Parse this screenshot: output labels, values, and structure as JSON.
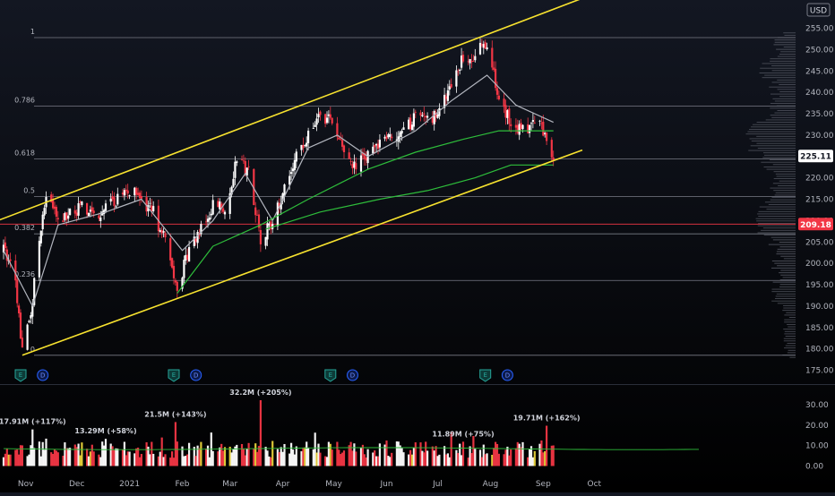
{
  "currency_label": "USD",
  "price_axis": {
    "ticks": [
      175,
      180,
      185,
      190,
      195,
      200,
      205,
      210,
      215,
      220,
      225,
      230,
      235,
      240,
      245,
      250,
      255
    ],
    "tick_labels": [
      "175.00",
      "180.00",
      "185.00",
      "190.00",
      "195.00",
      "200.00",
      "205.00",
      "210.00",
      "215.00",
      "220.00",
      "225.00",
      "230.00",
      "235.00",
      "240.00",
      "245.00",
      "250.00",
      "255.00"
    ],
    "last_price": 225.11,
    "last_price_label": "225.11",
    "marked_price": 209.18,
    "marked_price_label": "209.18",
    "colors": {
      "last_badge": "#ffffff",
      "marked_badge": "#f23645",
      "marked_line": "#f23645"
    }
  },
  "volume_axis": {
    "ticks": [
      0,
      10,
      20,
      30
    ],
    "tick_labels": [
      "0.00",
      "10.00",
      "20.00",
      "30.00"
    ]
  },
  "time_axis": {
    "labels": [
      "Nov",
      "Dec",
      "2021",
      "Feb",
      "Mar",
      "Apr",
      "May",
      "Jun",
      "Jul",
      "Aug",
      "Sep",
      "Oct"
    ]
  },
  "fib_levels": [
    {
      "label": "1",
      "price": 252.8
    },
    {
      "label": "0.786",
      "price": 236.8
    },
    {
      "label": "0.618",
      "price": 224.4
    },
    {
      "label": "0.5",
      "price": 215.6
    },
    {
      "label": "0.382",
      "price": 206.9
    },
    {
      "label": "0.236",
      "price": 196.0
    },
    {
      "label": "0",
      "price": 178.5
    }
  ],
  "event_markers": [
    {
      "type": "E",
      "date": "2020-10-29"
    },
    {
      "type": "D",
      "date": "2020-11-11"
    },
    {
      "type": "E",
      "date": "2021-01-27"
    },
    {
      "type": "D",
      "date": "2021-02-09"
    },
    {
      "type": "E",
      "date": "2021-04-29"
    },
    {
      "type": "D",
      "date": "2021-05-12"
    },
    {
      "type": "E",
      "date": "2021-07-29"
    },
    {
      "type": "D",
      "date": "2021-08-11"
    }
  ],
  "volume_annotations": [
    {
      "text": "17.91M (+117%)",
      "date": "2020-11-05",
      "value": 17.91
    },
    {
      "text": "13.29M (+58%)",
      "date": "2020-12-18",
      "value": 13.29
    },
    {
      "text": "21.5M (+143%)",
      "date": "2021-01-28",
      "value": 21.5
    },
    {
      "text": "32.2M (+205%)",
      "date": "2021-03-19",
      "value": 32.2
    },
    {
      "text": "11.89M (+75%)",
      "date": "2021-07-16",
      "value": 11.89
    },
    {
      "text": "19.71M (+162%)",
      "date": "2021-09-03",
      "value": 19.71
    }
  ],
  "colors": {
    "background": "#131722",
    "channel": "#f7e22f",
    "fib_line": "#787b86",
    "ma_fast": "#b2b5be",
    "ma_mid": "#2ebd3b",
    "ma_slow": "#2ebd3b",
    "bear": "#f23645",
    "bull": "#ffffff",
    "volume_ma": "#2ebd3b",
    "volume_highlight": "#e8d23a",
    "event_e": "#26a69a",
    "event_d": "#2962ff"
  },
  "chart_data": {
    "type": "candlestick",
    "title": "",
    "date_range": [
      "2020-10-19",
      "2021-09-07"
    ],
    "price_anchors": [
      {
        "date": "2020-10-19",
        "price": 203
      },
      {
        "date": "2020-10-26",
        "price": 196
      },
      {
        "date": "2020-10-30",
        "price": 179
      },
      {
        "date": "2020-11-04",
        "price": 188
      },
      {
        "date": "2020-11-09",
        "price": 206
      },
      {
        "date": "2020-11-13",
        "price": 215
      },
      {
        "date": "2020-11-20",
        "price": 210
      },
      {
        "date": "2020-11-27",
        "price": 212
      },
      {
        "date": "2020-12-04",
        "price": 213
      },
      {
        "date": "2020-12-11",
        "price": 211
      },
      {
        "date": "2020-12-18",
        "price": 213
      },
      {
        "date": "2020-12-28",
        "price": 216
      },
      {
        "date": "2021-01-04",
        "price": 218
      },
      {
        "date": "2021-01-08",
        "price": 214
      },
      {
        "date": "2021-01-15",
        "price": 212
      },
      {
        "date": "2021-01-22",
        "price": 205
      },
      {
        "date": "2021-01-29",
        "price": 193
      },
      {
        "date": "2021-02-05",
        "price": 204
      },
      {
        "date": "2021-02-12",
        "price": 208
      },
      {
        "date": "2021-02-19",
        "price": 214
      },
      {
        "date": "2021-02-26",
        "price": 213
      },
      {
        "date": "2021-03-05",
        "price": 224
      },
      {
        "date": "2021-03-12",
        "price": 222
      },
      {
        "date": "2021-03-19",
        "price": 206
      },
      {
        "date": "2021-03-26",
        "price": 210
      },
      {
        "date": "2021-04-02",
        "price": 217
      },
      {
        "date": "2021-04-09",
        "price": 225
      },
      {
        "date": "2021-04-16",
        "price": 230
      },
      {
        "date": "2021-04-23",
        "price": 235
      },
      {
        "date": "2021-04-30",
        "price": 233
      },
      {
        "date": "2021-05-07",
        "price": 226
      },
      {
        "date": "2021-05-14",
        "price": 222
      },
      {
        "date": "2021-05-21",
        "price": 226
      },
      {
        "date": "2021-05-28",
        "price": 228
      },
      {
        "date": "2021-06-04",
        "price": 229
      },
      {
        "date": "2021-06-11",
        "price": 231
      },
      {
        "date": "2021-06-18",
        "price": 234
      },
      {
        "date": "2021-06-25",
        "price": 233
      },
      {
        "date": "2021-07-02",
        "price": 236
      },
      {
        "date": "2021-07-09",
        "price": 242
      },
      {
        "date": "2021-07-16",
        "price": 248
      },
      {
        "date": "2021-07-23",
        "price": 247
      },
      {
        "date": "2021-07-28",
        "price": 252
      },
      {
        "date": "2021-08-02",
        "price": 246
      },
      {
        "date": "2021-08-06",
        "price": 238
      },
      {
        "date": "2021-08-13",
        "price": 233
      },
      {
        "date": "2021-08-20",
        "price": 231
      },
      {
        "date": "2021-08-27",
        "price": 233
      },
      {
        "date": "2021-09-01",
        "price": 231
      },
      {
        "date": "2021-09-07",
        "price": 225
      }
    ],
    "moving_averages": [
      {
        "name": "fast",
        "points": [
          {
            "date": "2020-10-19",
            "price": 203
          },
          {
            "date": "2020-11-05",
            "price": 190
          },
          {
            "date": "2020-11-20",
            "price": 209
          },
          {
            "date": "2020-12-18",
            "price": 212
          },
          {
            "date": "2021-01-08",
            "price": 215
          },
          {
            "date": "2021-02-01",
            "price": 203
          },
          {
            "date": "2021-02-19",
            "price": 210
          },
          {
            "date": "2021-03-10",
            "price": 221
          },
          {
            "date": "2021-03-26",
            "price": 210
          },
          {
            "date": "2021-04-16",
            "price": 227
          },
          {
            "date": "2021-05-03",
            "price": 230
          },
          {
            "date": "2021-05-21",
            "price": 225
          },
          {
            "date": "2021-06-18",
            "price": 231
          },
          {
            "date": "2021-07-09",
            "price": 238
          },
          {
            "date": "2021-07-30",
            "price": 244
          },
          {
            "date": "2021-08-16",
            "price": 237
          },
          {
            "date": "2021-09-07",
            "price": 233
          }
        ]
      },
      {
        "name": "mid",
        "points": [
          {
            "date": "2021-01-29",
            "price": 193
          },
          {
            "date": "2021-02-19",
            "price": 204
          },
          {
            "date": "2021-03-19",
            "price": 209
          },
          {
            "date": "2021-04-16",
            "price": 215
          },
          {
            "date": "2021-05-21",
            "price": 222
          },
          {
            "date": "2021-06-18",
            "price": 226
          },
          {
            "date": "2021-07-16",
            "price": 229
          },
          {
            "date": "2021-08-06",
            "price": 231
          },
          {
            "date": "2021-09-07",
            "price": 231
          }
        ]
      },
      {
        "name": "slow",
        "points": [
          {
            "date": "2021-03-22",
            "price": 208
          },
          {
            "date": "2021-04-23",
            "price": 212
          },
          {
            "date": "2021-05-28",
            "price": 215
          },
          {
            "date": "2021-06-25",
            "price": 217
          },
          {
            "date": "2021-07-23",
            "price": 220
          },
          {
            "date": "2021-08-13",
            "price": 223
          },
          {
            "date": "2021-09-07",
            "price": 223
          }
        ]
      }
    ],
    "channel_lines": [
      {
        "name": "upper",
        "start": {
          "date": "2020-10-09",
          "price": 209
        },
        "end": {
          "date": "2021-09-24",
          "price": 262
        }
      },
      {
        "name": "lower",
        "start": {
          "date": "2020-10-30",
          "price": 178.5
        },
        "end": {
          "date": "2021-09-24",
          "price": 226.5
        }
      }
    ],
    "volume_ylim": [
      0,
      35
    ],
    "ylim": [
      174,
      262
    ],
    "xlim": [
      "2020-10-19",
      "2021-10-11"
    ]
  }
}
